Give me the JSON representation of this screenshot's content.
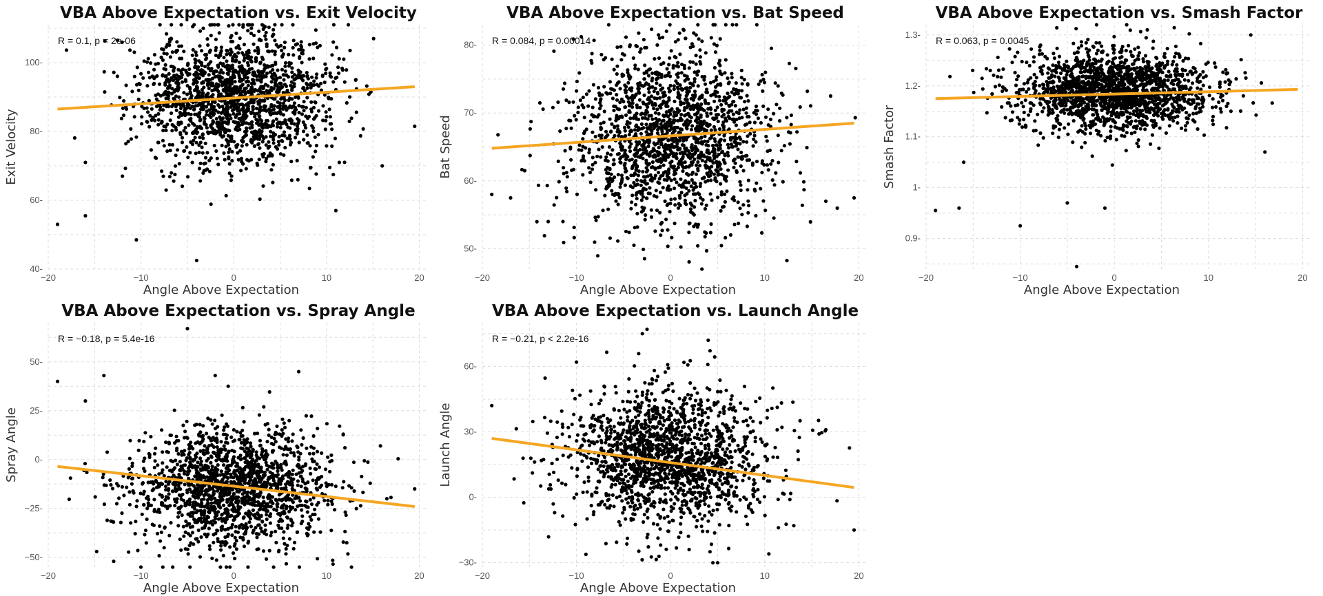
{
  "colors": {
    "point": "#000000",
    "fit_line": "#F5A623",
    "grid": "#dcdcdc"
  },
  "chart_data": [
    {
      "type": "scatter",
      "title": "VBA Above Expectation vs. Exit Velocity",
      "xlabel": "Angle Above Expectation",
      "ylabel": "Exit Velocity",
      "xlim": [
        -20,
        21
      ],
      "ylim": [
        40,
        111
      ],
      "xticks": [
        -20,
        -10,
        0,
        10,
        20
      ],
      "yticks": [
        40,
        60,
        80,
        100
      ],
      "stat_text": "R = 0.1, p = 2e-06",
      "fit": {
        "x": [
          -19,
          19.5
        ],
        "y": [
          86.5,
          93
        ]
      },
      "cloud": {
        "n": 1700,
        "x_center": 0,
        "x_sd": 5.2,
        "y_center": 90,
        "y_sd": 9.5,
        "seed": 11
      },
      "outliers": [
        [
          -19,
          53
        ],
        [
          -16,
          55.5
        ],
        [
          -10.5,
          48.5
        ],
        [
          -4,
          42.5
        ],
        [
          11,
          57
        ],
        [
          19.5,
          81.5
        ],
        [
          -12,
          67
        ],
        [
          -16,
          71
        ],
        [
          16,
          70
        ]
      ]
    },
    {
      "type": "scatter",
      "title": "VBA Above Expectation vs. Bat Speed",
      "xlabel": "Angle Above Expectation",
      "ylabel": "Bat Speed",
      "xlim": [
        -20,
        21
      ],
      "ylim": [
        47,
        83
      ],
      "xticks": [
        -20,
        -10,
        0,
        10,
        20
      ],
      "yticks": [
        50,
        60,
        70,
        80
      ],
      "stat_text": "R = 0.084, p = 0.00014",
      "fit": {
        "x": [
          -19,
          19.5
        ],
        "y": [
          64.8,
          68.5
        ]
      },
      "cloud": {
        "n": 1700,
        "x_center": 0,
        "x_sd": 5.2,
        "y_center": 66.5,
        "y_sd": 6.5,
        "seed": 23
      },
      "outliers": [
        [
          -19,
          58
        ],
        [
          -15.5,
          61.5
        ],
        [
          -17,
          57.5
        ],
        [
          19.5,
          57.5
        ],
        [
          17,
          72.5
        ],
        [
          16.5,
          57
        ],
        [
          -13,
          54
        ]
      ]
    },
    {
      "type": "scatter",
      "title": "VBA Above Expectation vs. Smash Factor",
      "xlabel": "Angle Above Expectation",
      "ylabel": "Smash Factor",
      "xlim": [
        -20,
        21
      ],
      "ylim": [
        0.84,
        1.32
      ],
      "xticks": [
        -20,
        -10,
        0,
        10,
        20
      ],
      "yticks": [
        0.9,
        1.0,
        1.1,
        1.2,
        1.3
      ],
      "stat_text": "R = 0.063, p = 0.0045",
      "fit": {
        "x": [
          -19,
          19.5
        ],
        "y": [
          1.175,
          1.193
        ]
      },
      "cloud": {
        "n": 1800,
        "x_center": 0,
        "x_sd": 5.2,
        "y_center": 1.19,
        "y_sd": 0.04,
        "seed": 37
      },
      "outliers": [
        [
          -19,
          0.955
        ],
        [
          -16.5,
          0.96
        ],
        [
          -10,
          0.925
        ],
        [
          -5,
          0.97
        ],
        [
          -1,
          0.96
        ],
        [
          -4,
          0.845
        ],
        [
          14.5,
          1.3
        ],
        [
          3.5,
          1.31
        ],
        [
          -16,
          1.05
        ],
        [
          16,
          1.07
        ]
      ]
    },
    {
      "type": "scatter",
      "title": "VBA Above Expectation vs. Spray Angle",
      "xlabel": "Angle Above Expectation",
      "ylabel": "Spray Angle",
      "xlim": [
        -20,
        21
      ],
      "ylim": [
        -55,
        70
      ],
      "xticks": [
        -20,
        -10,
        0,
        10,
        20
      ],
      "yticks": [
        -50,
        -25,
        0,
        25,
        50
      ],
      "stat_text": "R = −0.18, p = 5.4e-16",
      "fit": {
        "x": [
          -19,
          19.5
        ],
        "y": [
          -3.5,
          -24
        ]
      },
      "cloud": {
        "n": 1700,
        "x_center": 0,
        "x_sd": 5.2,
        "y_center": -14,
        "y_sd": 15,
        "seed": 53
      },
      "outliers": [
        [
          -19,
          40
        ],
        [
          -14,
          43
        ],
        [
          -5,
          67
        ],
        [
          7,
          45
        ],
        [
          -2,
          43
        ],
        [
          16.5,
          -20
        ],
        [
          19.5,
          -15
        ],
        [
          -16,
          30
        ]
      ]
    },
    {
      "type": "scatter",
      "title": "VBA Above Expectation vs. Launch Angle",
      "xlabel": "Angle Above Expectation",
      "ylabel": "Launch Angle",
      "xlim": [
        -20,
        21
      ],
      "ylim": [
        -32,
        80
      ],
      "xticks": [
        -20,
        -10,
        0,
        10,
        20
      ],
      "yticks": [
        -30,
        0,
        30,
        60
      ],
      "stat_text": "R = −0.21, p < 2.2e-16",
      "fit": {
        "x": [
          -19,
          19.5
        ],
        "y": [
          27,
          4.5
        ]
      },
      "cloud": {
        "n": 1700,
        "x_center": 0,
        "x_sd": 5.2,
        "y_center": 18,
        "y_sd": 15,
        "seed": 71
      },
      "outliers": [
        [
          -3,
          75
        ],
        [
          -2.5,
          77
        ],
        [
          4,
          72
        ],
        [
          -10,
          62
        ],
        [
          19.5,
          -15
        ],
        [
          -19,
          42
        ],
        [
          16.5,
          31
        ],
        [
          4.5,
          -30
        ],
        [
          5,
          -30
        ]
      ]
    }
  ]
}
